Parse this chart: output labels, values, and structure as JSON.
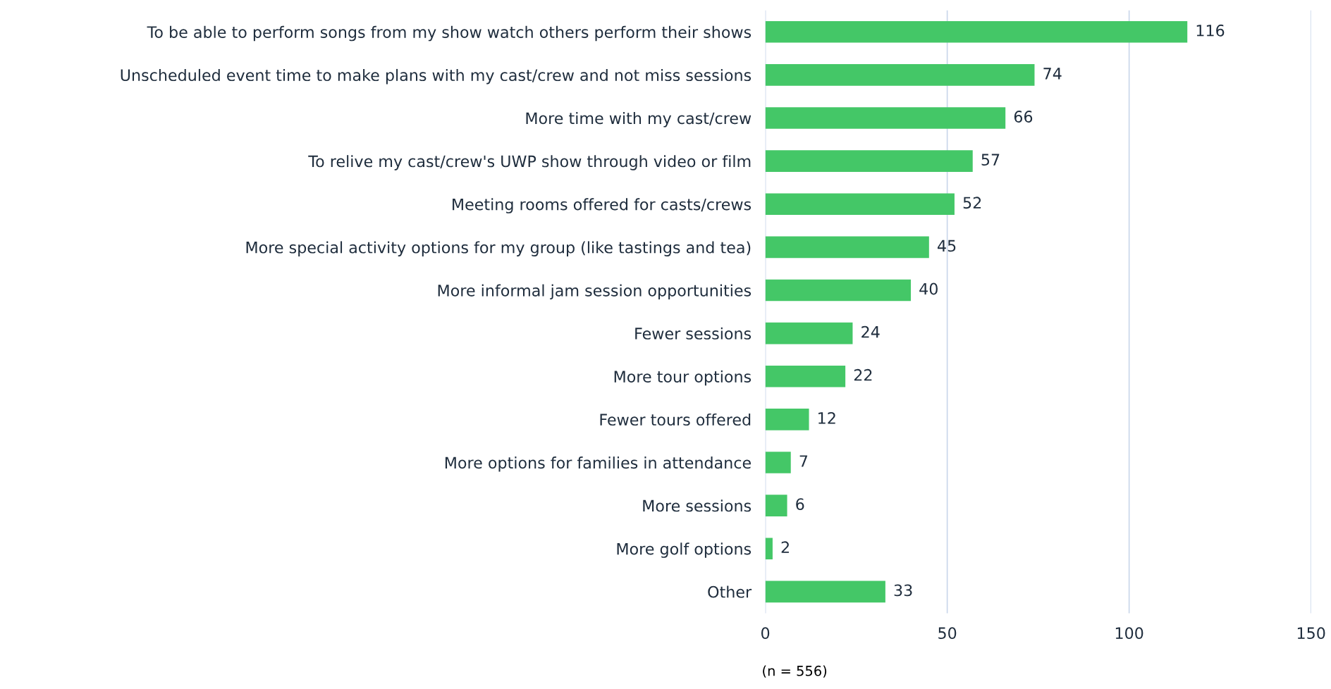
{
  "chart_data": {
    "type": "bar",
    "orientation": "horizontal",
    "categories": [
      "To be able to perform songs from my show watch others perform their shows",
      "Unscheduled event time to make plans with my cast/crew and not miss sessions",
      "More time with my cast/crew",
      "To relive my cast/crew's UWP show through video or film",
      "Meeting rooms offered for casts/crews",
      "More special activity options for my group (like tastings and tea)",
      "More informal jam session opportunities",
      "Fewer sessions",
      "More tour options",
      "Fewer tours offered",
      "More options for families in attendance",
      "More sessions",
      "More golf options",
      "Other"
    ],
    "values": [
      116,
      74,
      66,
      57,
      52,
      45,
      40,
      24,
      22,
      12,
      7,
      6,
      2,
      33
    ],
    "color": "#44c767",
    "xlim": [
      0,
      150
    ],
    "xticks": [
      0,
      50,
      100,
      150
    ],
    "grid": "x",
    "data_labels": true,
    "annotations": [
      "(n = 556)"
    ]
  }
}
